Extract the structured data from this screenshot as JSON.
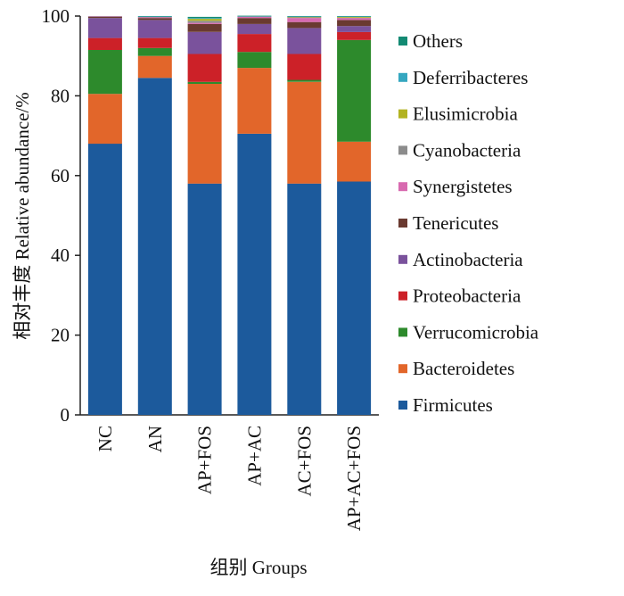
{
  "chart_data": {
    "type": "bar",
    "stacked": true,
    "orientation": "vertical",
    "title": "",
    "xlabel": "组别  Groups",
    "ylabel": "相对丰度  Relative abundance/%",
    "ylim": [
      0,
      100
    ],
    "yticks": [
      0,
      20,
      40,
      60,
      80,
      100
    ],
    "grid": false,
    "legend_position": "right",
    "categories": [
      "NC",
      "AN",
      "AP+FOS",
      "AP+AC",
      "AC+FOS",
      "AP+AC+FOS"
    ],
    "series": [
      {
        "name": "Firmicutes",
        "color": "#1c5a9c",
        "values": [
          68.0,
          84.5,
          58.0,
          70.5,
          58.0,
          58.5
        ]
      },
      {
        "name": "Bacteroidetes",
        "color": "#e2662a",
        "values": [
          12.5,
          5.5,
          25.0,
          16.5,
          25.5,
          10.0
        ]
      },
      {
        "name": "Verrucomicrobia",
        "color": "#2d8a2c",
        "values": [
          11.0,
          2.0,
          0.5,
          4.0,
          0.5,
          25.5
        ]
      },
      {
        "name": "Proteobacteria",
        "color": "#cc2128",
        "values": [
          3.0,
          2.5,
          7.0,
          4.5,
          6.5,
          2.0
        ]
      },
      {
        "name": "Actinobacteria",
        "color": "#7a529c",
        "values": [
          5.0,
          4.5,
          5.5,
          2.5,
          6.5,
          1.5
        ]
      },
      {
        "name": "Tenericutes",
        "color": "#6a3a30",
        "values": [
          0.3,
          0.5,
          2.0,
          1.5,
          1.5,
          1.5
        ]
      },
      {
        "name": "Synergistetes",
        "color": "#d86ab0",
        "values": [
          0.1,
          0.2,
          0.3,
          0.3,
          1.0,
          0.5
        ]
      },
      {
        "name": "Cyanobacteria",
        "color": "#8c8c8c",
        "values": [
          0.1,
          0.1,
          0.5,
          0.1,
          0.2,
          0.1
        ]
      },
      {
        "name": "Elusimicrobia",
        "color": "#b2b321",
        "values": [
          0.0,
          0.0,
          0.5,
          0.0,
          0.1,
          0.2
        ]
      },
      {
        "name": "Deferribacteres",
        "color": "#35a7c0",
        "values": [
          0.0,
          0.1,
          0.2,
          0.1,
          0.1,
          0.1
        ]
      },
      {
        "name": "Others",
        "color": "#138a73",
        "values": [
          0.0,
          0.1,
          0.3,
          0.1,
          0.1,
          0.1
        ]
      }
    ]
  }
}
